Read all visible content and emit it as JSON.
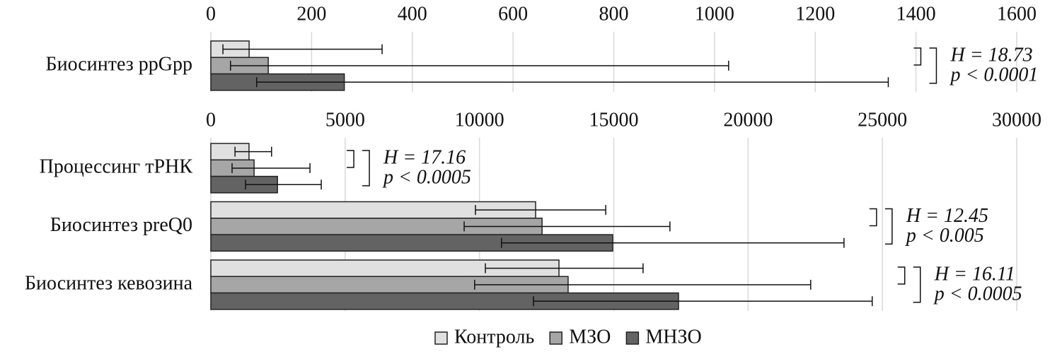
{
  "chart_data": [
    {
      "type": "bar",
      "orientation": "horizontal",
      "grid": true,
      "categories": [
        "Биосинтез ppGpp"
      ],
      "xlim": [
        0,
        1600
      ],
      "xticks": [
        0,
        200,
        400,
        600,
        800,
        1000,
        1200,
        1400,
        1600
      ],
      "series": [
        {
          "color": "#e0e0e0",
          "values": [
            76
          ],
          "low": [
            24
          ],
          "high": [
            340
          ]
        },
        {
          "color": "#a6a6a6",
          "values": [
            114
          ],
          "low": [
            39
          ],
          "high": [
            1028
          ]
        },
        {
          "color": "#636363",
          "values": [
            265
          ],
          "low": [
            91
          ],
          "high": [
            1345
          ]
        }
      ],
      "annotations": [
        [
          "H = 18.73",
          "p < 0.0001"
        ]
      ]
    },
    {
      "type": "bar",
      "orientation": "horizontal",
      "grid": true,
      "categories": [
        "Процессинг тРНК",
        "Биосинтез preQ0",
        "Биосинтез кевозина"
      ],
      "xlim": [
        0,
        30000
      ],
      "xticks": [
        0,
        5000,
        10000,
        15000,
        20000,
        25000,
        30000
      ],
      "series": [
        {
          "name": "Контроль",
          "color": "#e0e0e0",
          "values": [
            1420,
            12090,
            12960
          ],
          "low": [
            900,
            9850,
            10220
          ],
          "high": [
            2260,
            14700,
            16090
          ]
        },
        {
          "name": "МЗО",
          "color": "#a6a6a6",
          "values": [
            1610,
            12330,
            13300
          ],
          "low": [
            790,
            9430,
            9820
          ],
          "high": [
            3690,
            17090,
            22330
          ]
        },
        {
          "name": "МНЗО",
          "color": "#636363",
          "values": [
            2480,
            14960,
            17410
          ],
          "low": [
            1290,
            10820,
            12010
          ],
          "high": [
            4110,
            23570,
            24620
          ]
        }
      ],
      "annotations": [
        [
          "H = 17.16",
          "p < 0.0005"
        ],
        [
          "H = 12.45",
          "p < 0.005"
        ],
        [
          "H = 16.11",
          "p < 0.0005"
        ]
      ]
    }
  ]
}
